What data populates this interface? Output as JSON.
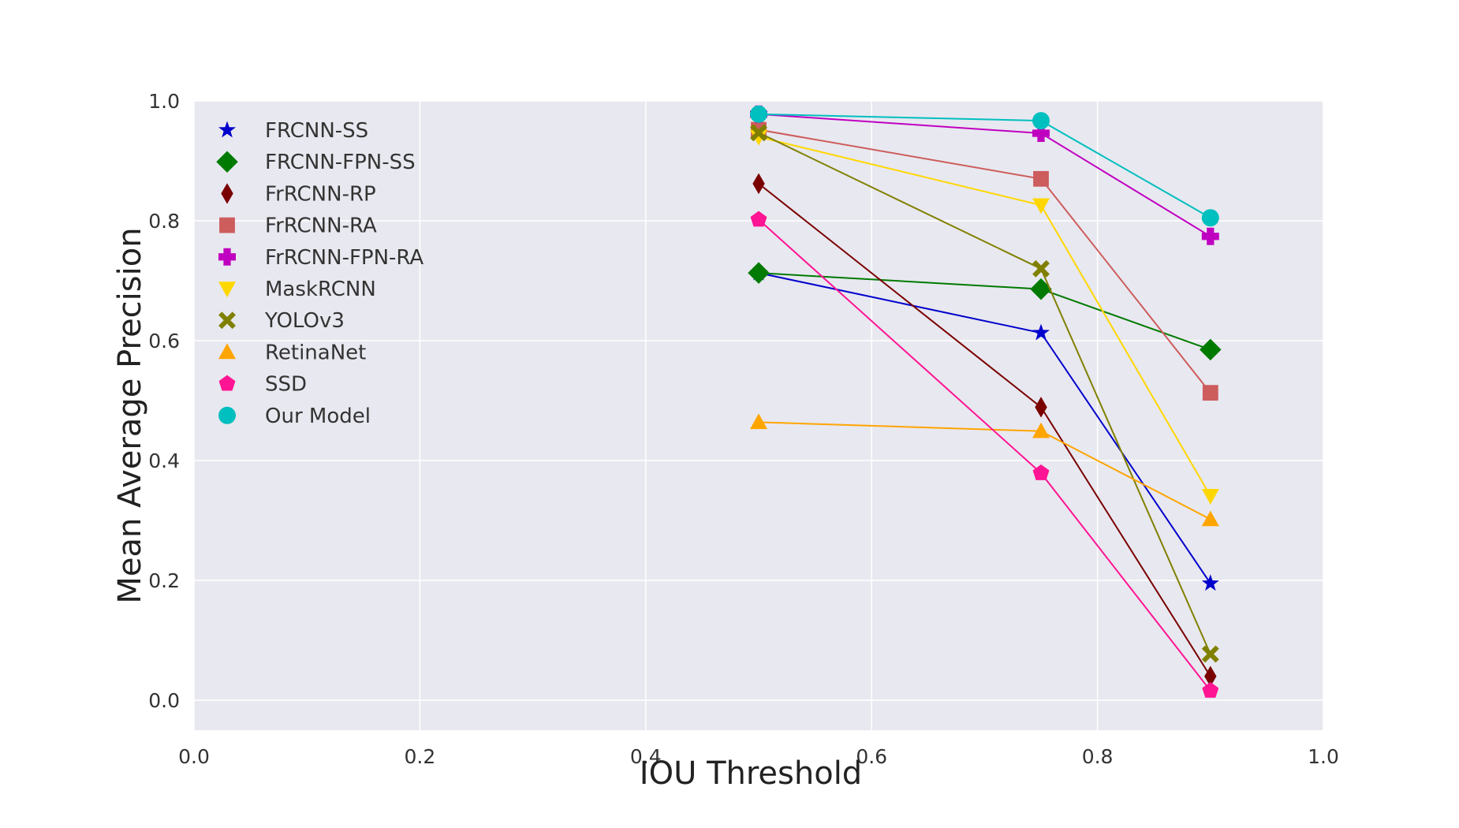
{
  "chart_data": {
    "type": "line",
    "title": "",
    "xlabel": "IOU Threshold",
    "ylabel": "Mean Average Precision",
    "xlim": [
      0.0,
      1.0
    ],
    "ylim": [
      -0.05,
      1.0
    ],
    "xticks": [
      "0.0",
      "0.2",
      "0.4",
      "0.6",
      "0.8",
      "1.0"
    ],
    "yticks": [
      "0.0",
      "0.2",
      "0.4",
      "0.6",
      "0.8",
      "1.0"
    ],
    "grid": true,
    "legend_position": "top-left",
    "x": [
      0.5,
      0.75,
      0.9
    ],
    "series": [
      {
        "name": "FRCNN-SS",
        "values": [
          0.713,
          0.613,
          0.195
        ],
        "color": "#0000cc",
        "marker": "star"
      },
      {
        "name": "FRCNN-FPN-SS",
        "values": [
          0.713,
          0.686,
          0.585
        ],
        "color": "#007a00",
        "marker": "diamond"
      },
      {
        "name": "FrRCNN-RP",
        "values": [
          0.862,
          0.489,
          0.04
        ],
        "color": "#7a0000",
        "marker": "thin-diamond"
      },
      {
        "name": "FrRCNN-RA",
        "values": [
          0.952,
          0.87,
          0.513
        ],
        "color": "#cd5c5c",
        "marker": "square"
      },
      {
        "name": "FrRCNN-FPN-RA",
        "values": [
          0.978,
          0.946,
          0.774
        ],
        "color": "#c000c0",
        "marker": "plus"
      },
      {
        "name": "MaskRCNN",
        "values": [
          0.94,
          0.826,
          0.341
        ],
        "color": "#ffd700",
        "marker": "triangle-down"
      },
      {
        "name": "YOLOv3",
        "values": [
          0.947,
          0.72,
          0.077
        ],
        "color": "#808000",
        "marker": "x"
      },
      {
        "name": "RetinaNet",
        "values": [
          0.464,
          0.449,
          0.302
        ],
        "color": "#ffa500",
        "marker": "triangle-up"
      },
      {
        "name": "SSD",
        "values": [
          0.802,
          0.379,
          0.016
        ],
        "color": "#ff1493",
        "marker": "pentagon"
      },
      {
        "name": "Our Model",
        "values": [
          0.978,
          0.967,
          0.805
        ],
        "color": "#00bfbf",
        "marker": "circle"
      }
    ]
  }
}
